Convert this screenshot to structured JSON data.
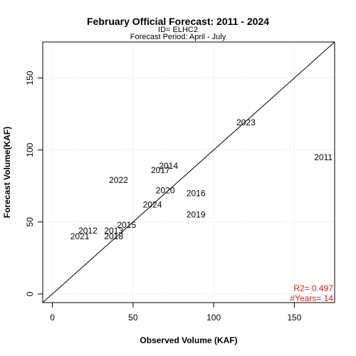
{
  "chart_data": {
    "type": "scatter",
    "title": "February Official Forecast: 2011 - 2024",
    "subtitle_id": "ID= ELHC2",
    "subtitle_period": "Forecast Period:  April - July",
    "xlabel": "Observed Volume (KAF)",
    "ylabel": "Forecast Volume(KAF)",
    "xlim": [
      -6,
      175
    ],
    "ylim": [
      -6,
      175
    ],
    "xticks": [
      0,
      50,
      100,
      150
    ],
    "yticks": [
      0,
      50,
      100,
      150
    ],
    "grid": true,
    "one_to_one_line": true,
    "points": [
      {
        "label": "2011",
        "x": 168,
        "y": 95
      },
      {
        "label": "2012",
        "x": 22,
        "y": 44
      },
      {
        "label": "2013",
        "x": 38,
        "y": 44
      },
      {
        "label": "2014",
        "x": 72,
        "y": 89
      },
      {
        "label": "2015",
        "x": 46,
        "y": 48
      },
      {
        "label": "2016",
        "x": 89,
        "y": 70
      },
      {
        "label": "2017",
        "x": 67,
        "y": 86
      },
      {
        "label": "2018",
        "x": 38,
        "y": 40
      },
      {
        "label": "2019",
        "x": 89,
        "y": 55
      },
      {
        "label": "2020",
        "x": 70,
        "y": 72
      },
      {
        "label": "2021",
        "x": 17,
        "y": 40
      },
      {
        "label": "2022",
        "x": 41,
        "y": 79
      },
      {
        "label": "2023",
        "x": 120,
        "y": 119
      },
      {
        "label": "2024",
        "x": 62,
        "y": 62
      }
    ],
    "stats": {
      "r2": "R2=  0.497",
      "years": "#Years=  14",
      "color": "#e0201b"
    }
  }
}
